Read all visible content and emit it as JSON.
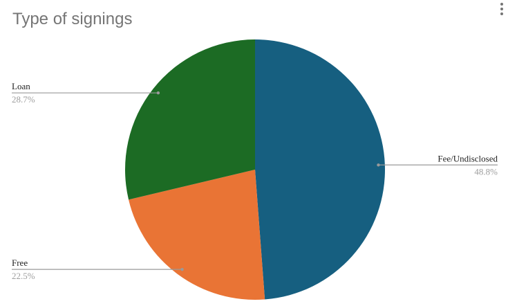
{
  "chart_data": {
    "type": "pie",
    "title": "Type of signings",
    "categories": [
      "Fee/Undisclosed",
      "Free",
      "Loan"
    ],
    "values": [
      48.8,
      22.5,
      28.7
    ],
    "value_labels": [
      "48.8%",
      "22.5%",
      "28.7%"
    ],
    "colors": [
      "#165f80",
      "#e97435",
      "#1c6b24"
    ]
  }
}
